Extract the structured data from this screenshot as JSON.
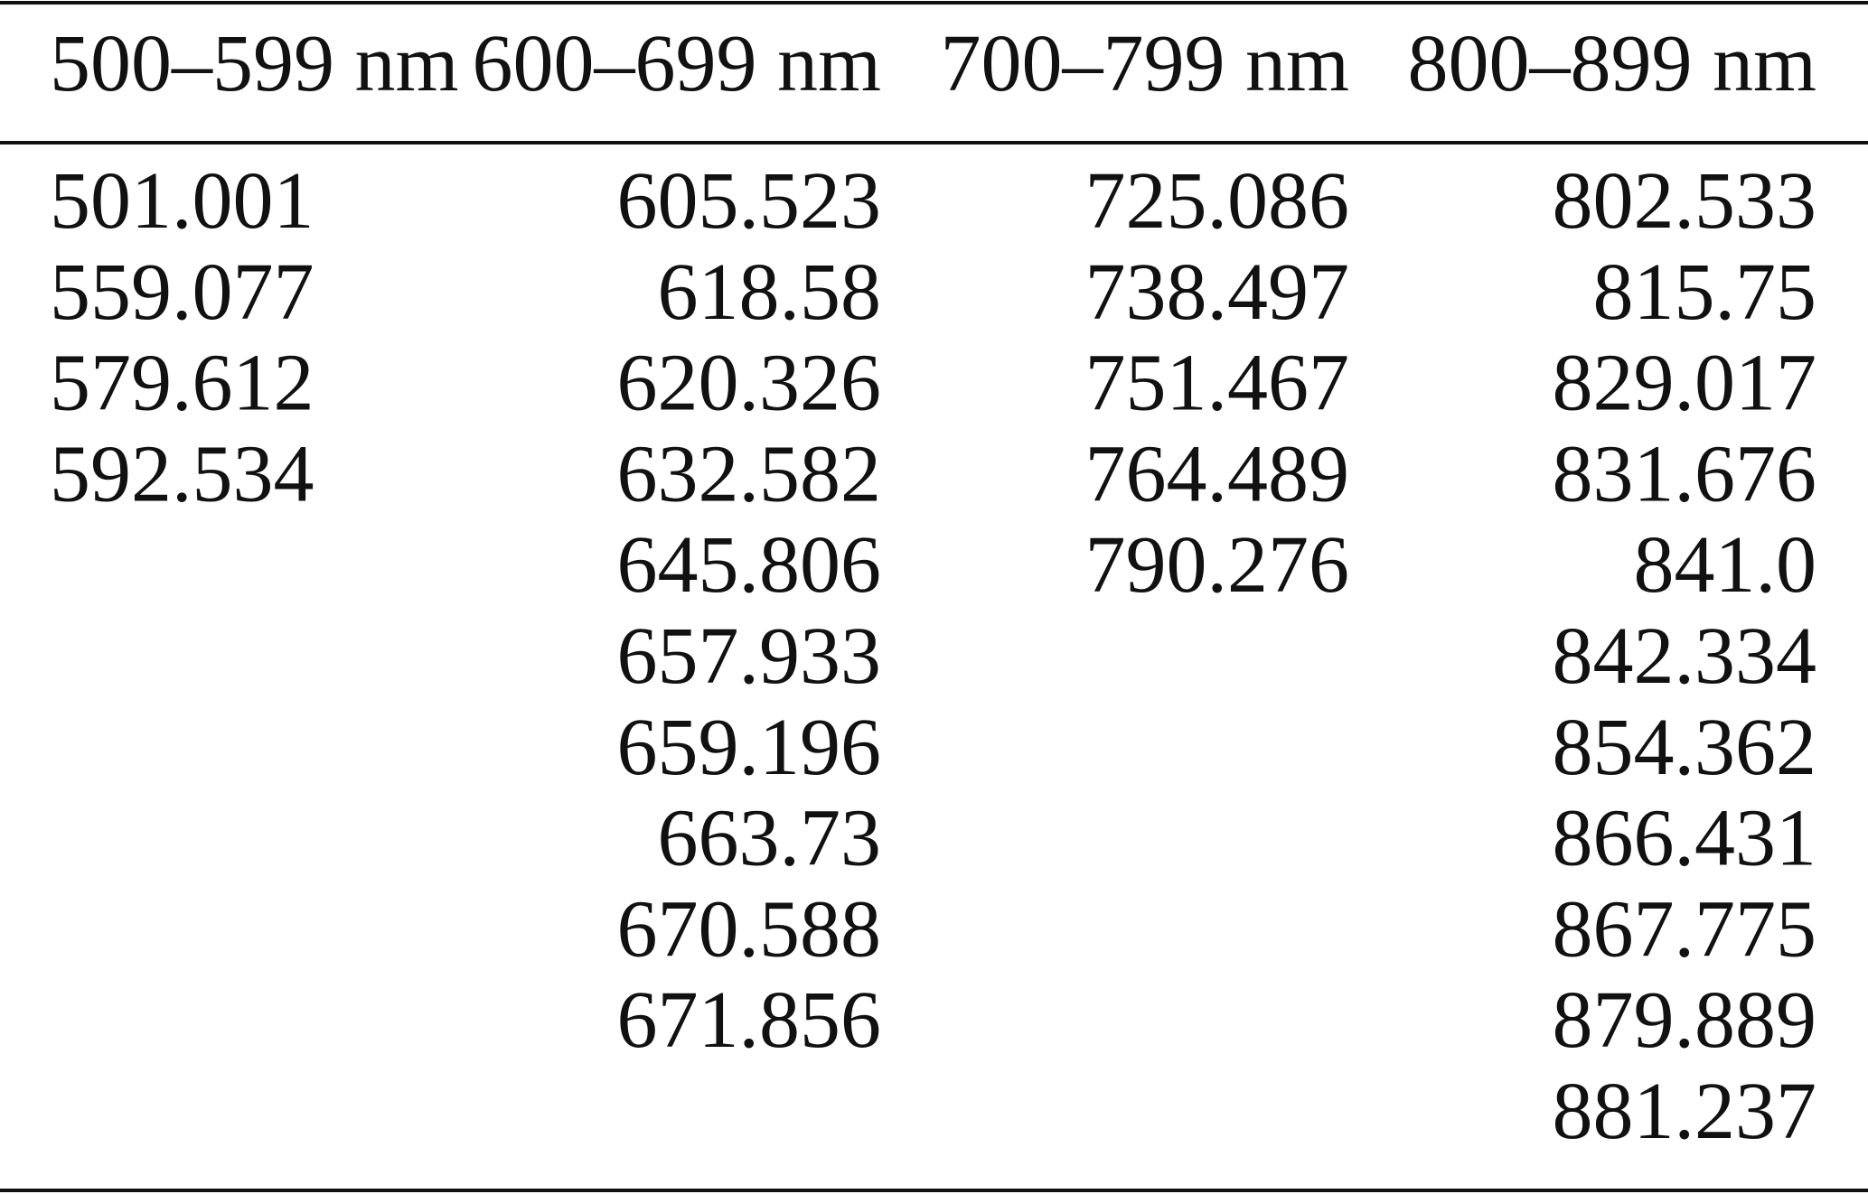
{
  "table": {
    "columns": [
      {
        "header": "500–599 nm",
        "values": [
          "501.001",
          "559.077",
          "579.612",
          "592.534"
        ]
      },
      {
        "header": "600–699 nm",
        "values": [
          "605.523",
          "618.58",
          "620.326",
          "632.582",
          "645.806",
          "657.933",
          "659.196",
          "663.73",
          "670.588",
          "671.856"
        ]
      },
      {
        "header": "700–799 nm",
        "values": [
          "725.086",
          "738.497",
          "751.467",
          "764.489",
          "790.276"
        ]
      },
      {
        "header": "800–899 nm",
        "values": [
          "802.533",
          "815.75",
          "829.017",
          "831.676",
          "841.0",
          "842.334",
          "854.362",
          "866.431",
          "867.775",
          "879.889",
          "881.237"
        ]
      }
    ]
  }
}
